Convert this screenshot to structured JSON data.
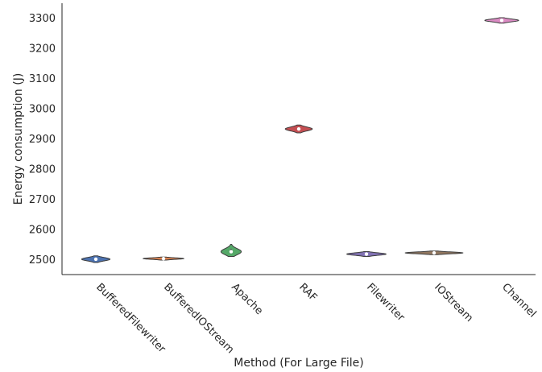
{
  "chart_data": {
    "type": "violin",
    "title": "",
    "xlabel": "Method (For Large File)",
    "ylabel": "Energy consumption (J)",
    "ylim": [
      2450,
      3350
    ],
    "yticks": [
      2500,
      2600,
      2700,
      2800,
      2900,
      3000,
      3100,
      3200,
      3300
    ],
    "grid": false,
    "legend": "none",
    "categories": [
      "BufferedFilewriter",
      "BufferedIOStream",
      "Apache",
      "RAF",
      "Filewriter",
      "IOStream",
      "Channel"
    ],
    "series": [
      {
        "category": "BufferedFilewriter",
        "median": 2501,
        "min": 2490,
        "max": 2512,
        "spread": 0.42,
        "color": "#4c72b0"
      },
      {
        "category": "BufferedIOStream",
        "median": 2503,
        "min": 2498,
        "max": 2508,
        "spread": 0.6,
        "color": "#dd8452"
      },
      {
        "category": "Apache",
        "median": 2526,
        "min": 2510,
        "max": 2550,
        "spread": 0.3,
        "color": "#55a868"
      },
      {
        "category": "RAF",
        "median": 2933,
        "min": 2920,
        "max": 2946,
        "spread": 0.4,
        "color": "#c44e52"
      },
      {
        "category": "Filewriter",
        "median": 2518,
        "min": 2510,
        "max": 2526,
        "spread": 0.58,
        "color": "#8172b3"
      },
      {
        "category": "IOStream",
        "median": 2522,
        "min": 2516,
        "max": 2528,
        "spread": 0.85,
        "color": "#937860"
      },
      {
        "category": "Channel",
        "median": 3293,
        "min": 3284,
        "max": 3302,
        "spread": 0.5,
        "color": "#da8bc3"
      }
    ]
  }
}
